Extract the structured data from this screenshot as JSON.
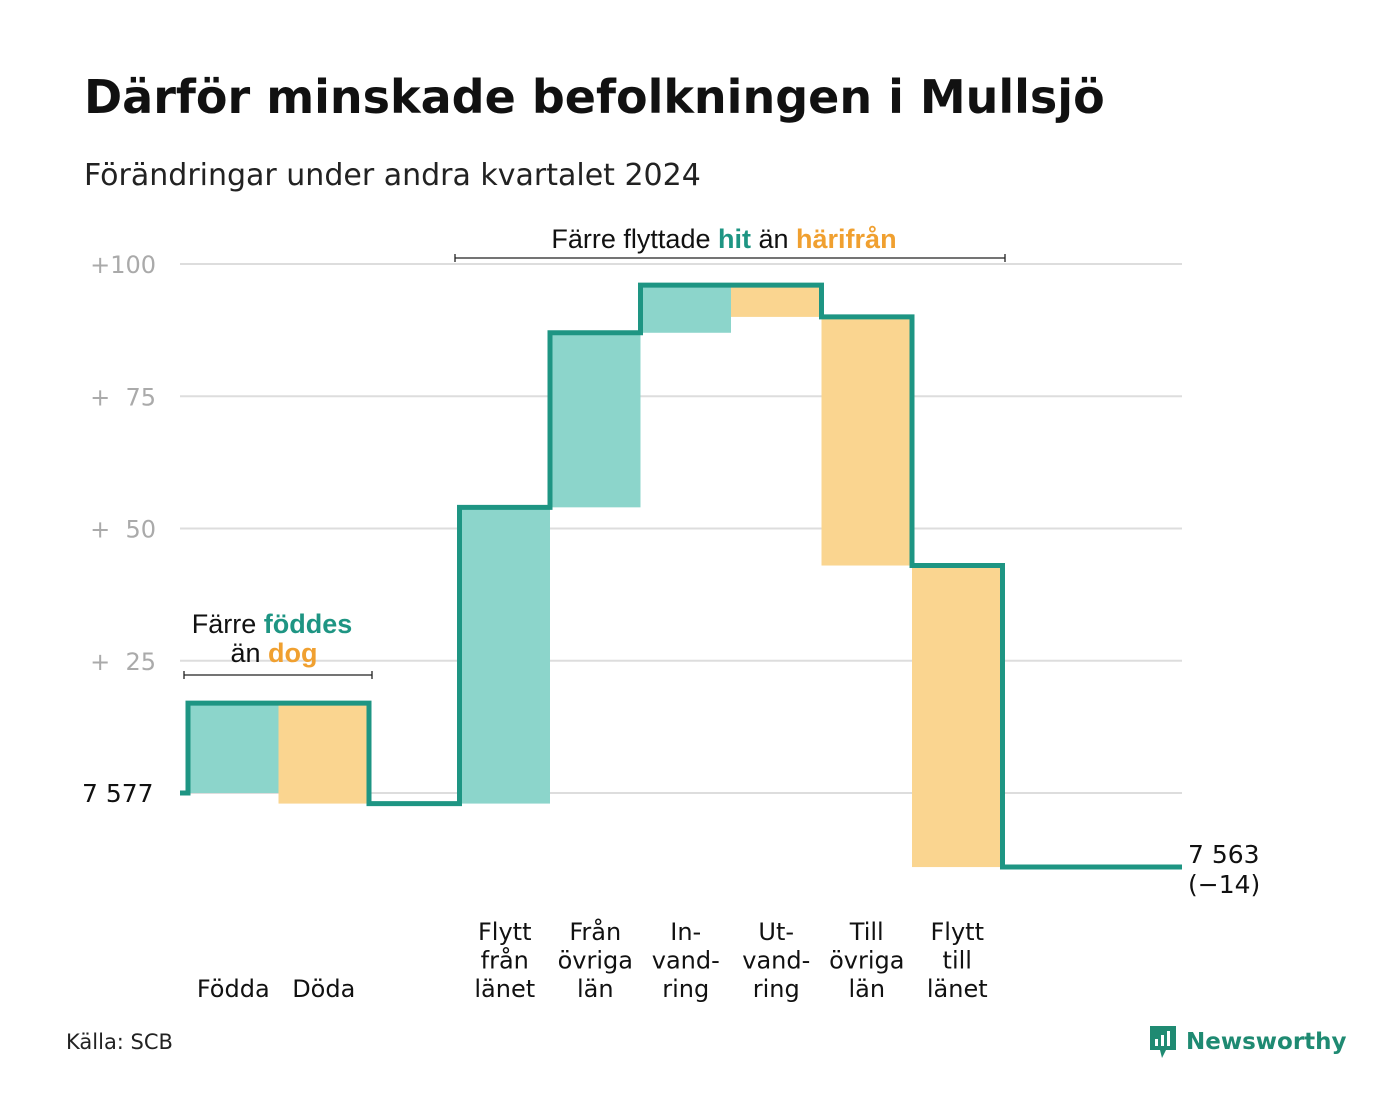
{
  "title": "Därför minskade befolkningen i Mullsjö",
  "subtitle": "Förändringar under andra kvartalet 2024",
  "source": "Källa: SCB",
  "brand": {
    "name": "Newsworthy",
    "icon": "newsworthy-logo-icon"
  },
  "colors": {
    "inflow": "#8cd5cb",
    "outflow": "#fad590",
    "line": "#1e9583",
    "inflow_text": "#1e9583",
    "outflow_text": "#f0a030",
    "grid": "#dddddd",
    "tick": "#aaaaaa"
  },
  "annotations": {
    "natural": {
      "line1_pre": "Färre ",
      "line1_hi": "föddes",
      "line2_pre": "än ",
      "line2_hi": "dog"
    },
    "migration": {
      "pre": "Färre flyttade ",
      "hi1": "hit",
      "mid": " än ",
      "hi2": "härifrån"
    }
  },
  "chart_data": {
    "type": "waterfall",
    "title": "Därför minskade befolkningen i Mullsjö",
    "subtitle": "Förändringar under andra kvartalet 2024",
    "start_value": 7577,
    "start_label": "7  577",
    "end_value": 7563,
    "end_label": "7 563",
    "end_change_label": "(−14)",
    "y_ticks": [
      {
        "value": 100,
        "label": "+100"
      },
      {
        "value": 75,
        "label": "+  75"
      },
      {
        "value": 50,
        "label": "+  50"
      },
      {
        "value": 25,
        "label": "+  25"
      }
    ],
    "ylim": [
      -14,
      100
    ],
    "steps": [
      {
        "label": [
          "Födda"
        ],
        "value": 17,
        "kind": "in"
      },
      {
        "label": [
          "Döda"
        ],
        "value": -19,
        "kind": "out"
      },
      {
        "label": [],
        "value": 0,
        "kind": "gap"
      },
      {
        "label": [
          "Flytt",
          "från",
          "länet"
        ],
        "value": 56,
        "kind": "in"
      },
      {
        "label": [
          "Från",
          "övriga",
          "län"
        ],
        "value": 33,
        "kind": "in"
      },
      {
        "label": [
          "In-",
          "vand-",
          "ring"
        ],
        "value": 9,
        "kind": "in"
      },
      {
        "label": [
          "Ut-",
          "vand-",
          "ring"
        ],
        "value": -6,
        "kind": "out"
      },
      {
        "label": [
          "Till",
          "övriga",
          "län"
        ],
        "value": -47,
        "kind": "out"
      },
      {
        "label": [
          "Flytt",
          "till",
          "länet"
        ],
        "value": -57,
        "kind": "out"
      },
      {
        "label": [],
        "value": 0,
        "kind": "gap"
      }
    ]
  }
}
